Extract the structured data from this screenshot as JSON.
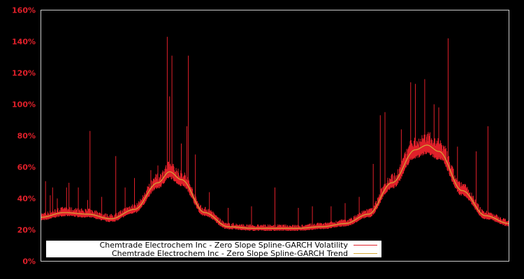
{
  "chart_data": {
    "type": "line",
    "title": "",
    "xlabel": "",
    "ylabel": "",
    "ylim": [
      0,
      160
    ],
    "y_ticks": [
      "0%",
      "20%",
      "40%",
      "60%",
      "80%",
      "100%",
      "120%",
      "140%",
      "160%"
    ],
    "y_tick_values": [
      0,
      20,
      40,
      60,
      80,
      100,
      120,
      140,
      160
    ],
    "grid": false,
    "legend_position": "lower left",
    "background": "#000000",
    "series": [
      {
        "name": "Chemtrade Electrochem Inc - Zero Slope Spline-GARCH Volatility",
        "color": "#e0202a",
        "description": "Noisy daily volatility hugging the trend with spikes",
        "spikes": [
          {
            "x_frac": 0.01,
            "value": 51
          },
          {
            "x_frac": 0.02,
            "value": 42
          },
          {
            "x_frac": 0.025,
            "value": 47
          },
          {
            "x_frac": 0.035,
            "value": 40
          },
          {
            "x_frac": 0.055,
            "value": 47
          },
          {
            "x_frac": 0.06,
            "value": 50
          },
          {
            "x_frac": 0.08,
            "value": 47
          },
          {
            "x_frac": 0.1,
            "value": 39
          },
          {
            "x_frac": 0.105,
            "value": 83
          },
          {
            "x_frac": 0.13,
            "value": 41
          },
          {
            "x_frac": 0.16,
            "value": 67
          },
          {
            "x_frac": 0.18,
            "value": 47
          },
          {
            "x_frac": 0.2,
            "value": 53
          },
          {
            "x_frac": 0.235,
            "value": 58
          },
          {
            "x_frac": 0.25,
            "value": 61
          },
          {
            "x_frac": 0.27,
            "value": 143
          },
          {
            "x_frac": 0.275,
            "value": 105
          },
          {
            "x_frac": 0.28,
            "value": 131
          },
          {
            "x_frac": 0.3,
            "value": 75
          },
          {
            "x_frac": 0.315,
            "value": 131
          },
          {
            "x_frac": 0.312,
            "value": 86
          },
          {
            "x_frac": 0.33,
            "value": 68
          },
          {
            "x_frac": 0.36,
            "value": 44
          },
          {
            "x_frac": 0.4,
            "value": 34
          },
          {
            "x_frac": 0.45,
            "value": 35
          },
          {
            "x_frac": 0.5,
            "value": 47
          },
          {
            "x_frac": 0.55,
            "value": 34
          },
          {
            "x_frac": 0.58,
            "value": 35
          },
          {
            "x_frac": 0.62,
            "value": 35
          },
          {
            "x_frac": 0.65,
            "value": 37
          },
          {
            "x_frac": 0.68,
            "value": 41
          },
          {
            "x_frac": 0.71,
            "value": 62
          },
          {
            "x_frac": 0.725,
            "value": 93
          },
          {
            "x_frac": 0.735,
            "value": 95
          },
          {
            "x_frac": 0.77,
            "value": 84
          },
          {
            "x_frac": 0.79,
            "value": 114
          },
          {
            "x_frac": 0.8,
            "value": 113
          },
          {
            "x_frac": 0.82,
            "value": 116
          },
          {
            "x_frac": 0.84,
            "value": 100
          },
          {
            "x_frac": 0.85,
            "value": 98
          },
          {
            "x_frac": 0.87,
            "value": 142
          },
          {
            "x_frac": 0.89,
            "value": 73
          },
          {
            "x_frac": 0.93,
            "value": 70
          },
          {
            "x_frac": 0.955,
            "value": 86
          },
          {
            "x_frac": 0.965,
            "value": 29
          }
        ]
      },
      {
        "name": "Chemtrade Electrochem Inc - Zero Slope Spline-GARCH Trend",
        "color": "#d4a837",
        "x_frac": [
          0.0,
          0.05,
          0.1,
          0.15,
          0.2,
          0.25,
          0.275,
          0.3,
          0.35,
          0.4,
          0.45,
          0.5,
          0.55,
          0.6,
          0.65,
          0.7,
          0.75,
          0.8,
          0.825,
          0.85,
          0.9,
          0.95,
          1.0
        ],
        "values": [
          28,
          31,
          30,
          27,
          33,
          50,
          57,
          52,
          31,
          22,
          21,
          21,
          21,
          22,
          24,
          30,
          50,
          71,
          74,
          70,
          45,
          29,
          24
        ]
      }
    ]
  },
  "legend": {
    "items": [
      {
        "label": "Chemtrade Electrochem Inc - Zero Slope Spline-GARCH Volatility",
        "color": "#e0202a"
      },
      {
        "label": "Chemtrade Electrochem Inc - Zero Slope Spline-GARCH Trend",
        "color": "#d4a837"
      }
    ]
  }
}
